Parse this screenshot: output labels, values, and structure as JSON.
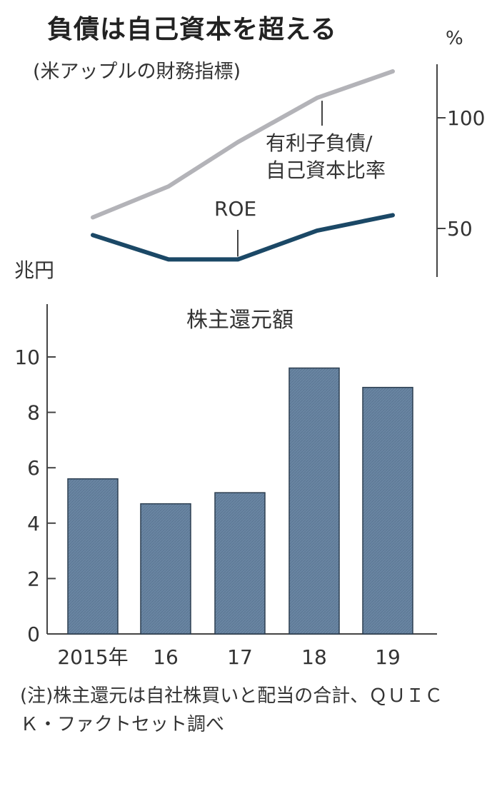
{
  "header": {
    "title": "負債は自己資本を超える",
    "subtitle": "(米アップルの財務指標)"
  },
  "chart_data": [
    {
      "type": "line",
      "x": [
        "2015",
        "2016",
        "2017",
        "2018",
        "2019"
      ],
      "series": [
        {
          "name": "有利子負債/自己資本比率",
          "values": [
            55,
            69,
            89,
            109,
            121
          ],
          "color": "#b3b3b8"
        },
        {
          "name": "ROE",
          "values": [
            47,
            36,
            36,
            49,
            56
          ],
          "color": "#1b4866"
        }
      ],
      "ylabel": "%",
      "yticks": [
        50,
        100
      ],
      "ylim": [
        40,
        125
      ]
    },
    {
      "type": "bar",
      "title": "株主還元額",
      "ylabel": "兆円",
      "categories": [
        "2015年",
        "16",
        "17",
        "18",
        "19"
      ],
      "values": [
        5.6,
        4.7,
        5.1,
        9.6,
        8.9
      ],
      "yticks": [
        0,
        2,
        4,
        6,
        8,
        10
      ],
      "ylim": [
        0,
        12
      ],
      "color": "#6a86a3"
    }
  ],
  "note": "(注)株主還元は自社株買いと配当の合計、ＱＵＩＣＫ・ファクトセット調べ"
}
